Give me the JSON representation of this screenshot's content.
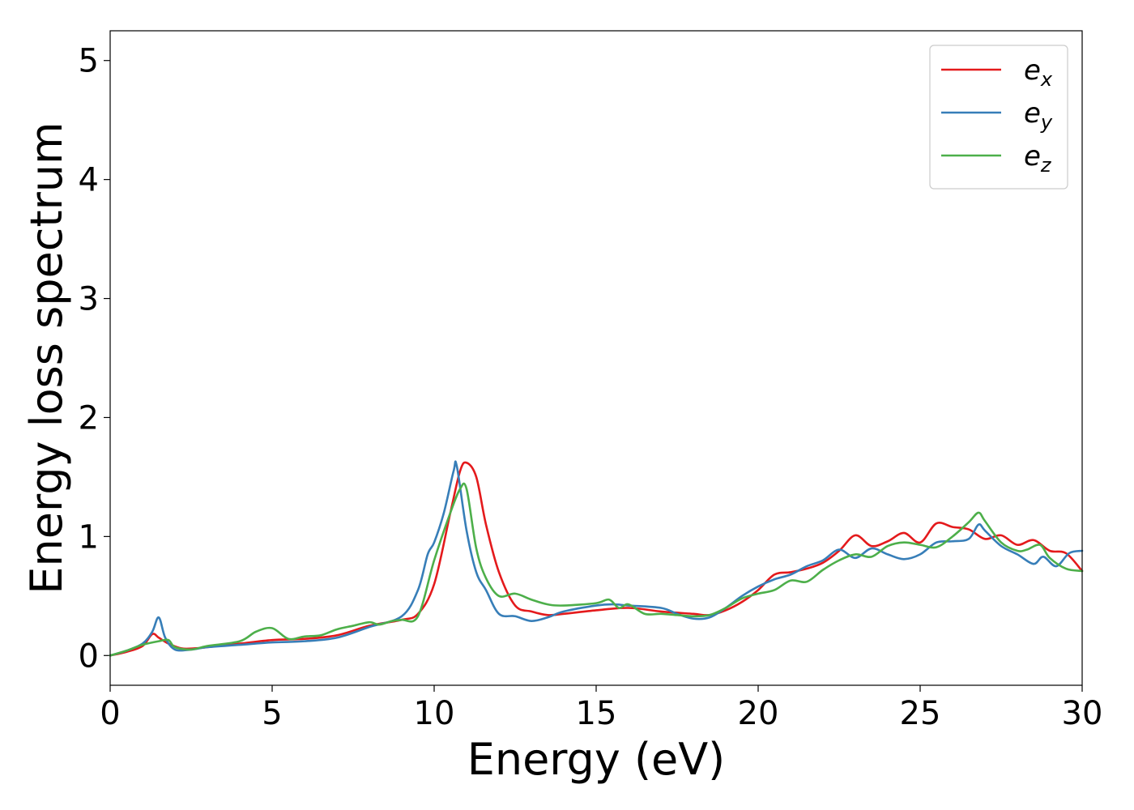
{
  "chart_data": {
    "type": "line",
    "title": "",
    "xlabel": "Energy (eV)",
    "ylabel": "Energy loss spectrum",
    "xlim": [
      0,
      30
    ],
    "ylim": [
      -0.25,
      5.25
    ],
    "xticks": [
      0,
      5,
      10,
      15,
      20,
      25,
      30
    ],
    "yticks": [
      0,
      1,
      2,
      3,
      4,
      5
    ],
    "grid": false,
    "legend_position": "top-right",
    "series": [
      {
        "name": "e",
        "subscript": "x",
        "color": "#e41a1c",
        "x": [
          0,
          0.5,
          1.0,
          1.3,
          1.5,
          1.8,
          2.2,
          2.6,
          3.0,
          4.0,
          5.0,
          6.0,
          7.0,
          8.0,
          9.0,
          9.5,
          10.0,
          10.5,
          10.8,
          11.0,
          11.3,
          11.6,
          12.0,
          12.5,
          13.0,
          13.5,
          14.0,
          15.0,
          16.0,
          17.0,
          18.0,
          18.5,
          19.0,
          19.5,
          20.0,
          20.5,
          21.0,
          21.5,
          22.0,
          22.5,
          23.0,
          23.5,
          24.0,
          24.5,
          25.0,
          25.5,
          26.0,
          26.5,
          27.0,
          27.5,
          28.0,
          28.5,
          29.0,
          29.5,
          30.0
        ],
        "y": [
          0.0,
          0.03,
          0.08,
          0.18,
          0.15,
          0.1,
          0.06,
          0.06,
          0.07,
          0.1,
          0.13,
          0.14,
          0.17,
          0.25,
          0.3,
          0.35,
          0.6,
          1.2,
          1.55,
          1.62,
          1.5,
          1.1,
          0.7,
          0.42,
          0.37,
          0.34,
          0.35,
          0.38,
          0.4,
          0.37,
          0.35,
          0.34,
          0.38,
          0.45,
          0.55,
          0.68,
          0.7,
          0.73,
          0.78,
          0.88,
          1.01,
          0.92,
          0.96,
          1.03,
          0.95,
          1.11,
          1.08,
          1.06,
          0.98,
          1.01,
          0.93,
          0.97,
          0.88,
          0.86,
          0.71
        ]
      },
      {
        "name": "e",
        "subscript": "y",
        "color": "#377eb8",
        "x": [
          0,
          0.5,
          1.0,
          1.3,
          1.5,
          1.7,
          2.0,
          2.5,
          3.0,
          4.0,
          5.0,
          6.0,
          7.0,
          8.0,
          9.0,
          9.5,
          9.8,
          10.0,
          10.3,
          10.6,
          10.7,
          11.0,
          11.3,
          11.6,
          12.0,
          12.5,
          13.0,
          13.5,
          14.0,
          15.0,
          15.5,
          16.0,
          17.0,
          17.5,
          18.0,
          18.5,
          19.0,
          19.5,
          20.0,
          20.5,
          21.0,
          21.5,
          22.0,
          22.5,
          23.0,
          23.5,
          24.0,
          24.5,
          25.0,
          25.5,
          26.0,
          26.5,
          26.8,
          27.0,
          27.5,
          28.0,
          28.5,
          28.8,
          29.2,
          29.6,
          30.0
        ],
        "y": [
          0.0,
          0.04,
          0.1,
          0.2,
          0.32,
          0.15,
          0.05,
          0.05,
          0.07,
          0.09,
          0.11,
          0.12,
          0.15,
          0.24,
          0.33,
          0.55,
          0.85,
          0.95,
          1.2,
          1.55,
          1.59,
          1.05,
          0.7,
          0.55,
          0.35,
          0.33,
          0.29,
          0.32,
          0.37,
          0.42,
          0.43,
          0.42,
          0.4,
          0.35,
          0.31,
          0.32,
          0.4,
          0.5,
          0.58,
          0.64,
          0.68,
          0.75,
          0.8,
          0.89,
          0.82,
          0.9,
          0.85,
          0.81,
          0.85,
          0.95,
          0.96,
          0.98,
          1.1,
          1.05,
          0.92,
          0.85,
          0.77,
          0.83,
          0.75,
          0.86,
          0.88
        ]
      },
      {
        "name": "e",
        "subscript": "z",
        "color": "#4daf4a",
        "x": [
          0,
          0.5,
          1.0,
          1.5,
          1.8,
          2.0,
          2.5,
          3.0,
          4.0,
          4.5,
          5.0,
          5.5,
          6.0,
          6.5,
          7.0,
          7.5,
          8.0,
          8.3,
          8.7,
          9.0,
          9.5,
          10.0,
          10.5,
          10.8,
          11.0,
          11.3,
          11.6,
          12.0,
          12.5,
          13.0,
          13.5,
          14.0,
          15.0,
          15.4,
          15.7,
          16.0,
          16.5,
          17.0,
          17.5,
          18.0,
          18.5,
          19.0,
          19.5,
          20.0,
          20.5,
          21.0,
          21.5,
          22.0,
          22.5,
          23.0,
          23.5,
          24.0,
          24.5,
          25.0,
          25.5,
          26.0,
          26.5,
          26.8,
          27.0,
          27.5,
          28.0,
          28.3,
          28.7,
          29.0,
          29.5,
          30.0
        ],
        "y": [
          0.0,
          0.04,
          0.09,
          0.12,
          0.13,
          0.07,
          0.05,
          0.08,
          0.12,
          0.2,
          0.23,
          0.14,
          0.16,
          0.17,
          0.22,
          0.25,
          0.28,
          0.26,
          0.29,
          0.3,
          0.33,
          0.8,
          1.2,
          1.4,
          1.4,
          0.9,
          0.65,
          0.5,
          0.52,
          0.47,
          0.43,
          0.42,
          0.44,
          0.47,
          0.4,
          0.43,
          0.35,
          0.35,
          0.34,
          0.33,
          0.34,
          0.4,
          0.48,
          0.52,
          0.55,
          0.63,
          0.62,
          0.72,
          0.8,
          0.85,
          0.83,
          0.92,
          0.95,
          0.93,
          0.91,
          1.0,
          1.12,
          1.2,
          1.13,
          0.95,
          0.88,
          0.89,
          0.93,
          0.82,
          0.73,
          0.71
        ]
      }
    ]
  }
}
